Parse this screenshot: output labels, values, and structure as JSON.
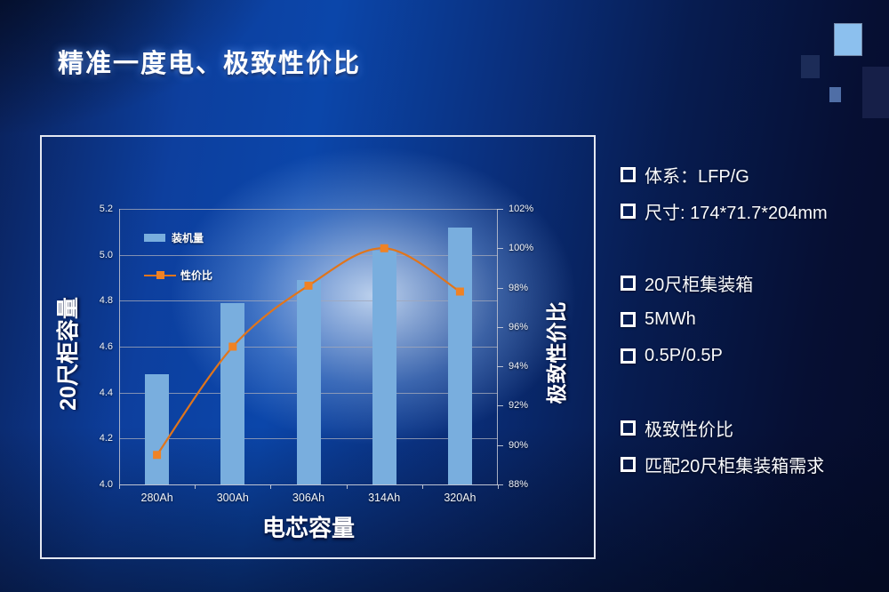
{
  "slide": {
    "title": "精准一度电、极致性价比"
  },
  "decor": {
    "squares": [
      {
        "name": "decor-square-large-light",
        "color": "#8cc0ee"
      },
      {
        "name": "decor-square-dark",
        "color": "#1c2c58"
      },
      {
        "name": "decor-square-small",
        "color": "#4f6ea6"
      },
      {
        "name": "decor-square-edge",
        "color": "#161f48"
      }
    ]
  },
  "chart_data": {
    "type": "bar",
    "categories": [
      "280Ah",
      "300Ah",
      "306Ah",
      "314Ah",
      "320Ah"
    ],
    "series": [
      {
        "name": "装机量",
        "type": "bar",
        "axis": "left",
        "values": [
          4.48,
          4.79,
          4.89,
          5.02,
          5.12
        ],
        "color": "#79aede"
      },
      {
        "name": "性价比",
        "type": "line",
        "axis": "right",
        "values": [
          89.5,
          95.0,
          98.1,
          100.0,
          97.8
        ],
        "color": "#e0751c",
        "marker_color": "#f08224"
      }
    ],
    "title": "",
    "xlabel": "电芯容量",
    "left_axis": {
      "title": "20尺柜容量",
      "min": 4.0,
      "max": 5.2,
      "step": 0.2,
      "ticks": [
        "5.2",
        "5.0",
        "4.8",
        "4.6",
        "4.4",
        "4.2",
        "4.0"
      ]
    },
    "right_axis": {
      "title": "极致性价比",
      "min": 88,
      "max": 102,
      "step": 2,
      "ticks": [
        "102%",
        "100%",
        "98%",
        "96%",
        "94%",
        "92%",
        "90%",
        "88%"
      ]
    },
    "grid": true,
    "legend_position": "upper-left-inside"
  },
  "specs": {
    "groups": [
      {
        "items": [
          {
            "text": "体系：LFP/G"
          },
          {
            "text": "尺寸: 174*71.7*204mm"
          }
        ]
      },
      {
        "items": [
          {
            "text": "20尺柜集装箱"
          },
          {
            "text": "5MWh"
          },
          {
            "text": "0.5P/0.5P"
          }
        ]
      },
      {
        "items": [
          {
            "text": "极致性价比"
          },
          {
            "text": "匹配20尺柜集装箱需求"
          }
        ]
      }
    ]
  }
}
